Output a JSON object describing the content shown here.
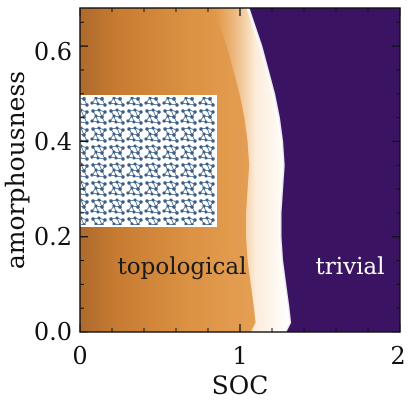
{
  "chart_data": {
    "type": "heatmap",
    "xlabel": "SOC",
    "ylabel": "amorphousness",
    "xlim": [
      0,
      2
    ],
    "ylim": [
      0,
      0.68
    ],
    "x_ticks": [
      "0",
      "1",
      "2"
    ],
    "y_ticks": [
      "0.0",
      "0.2",
      "0.4",
      "0.6"
    ],
    "x_tick_values": [
      0,
      1,
      2
    ],
    "y_tick_values": [
      0.0,
      0.2,
      0.4,
      0.6
    ],
    "regions": [
      {
        "label": "topological",
        "color": "#c8731a"
      },
      {
        "label": "trivial",
        "color": "#3a1463"
      }
    ],
    "phase_boundary": [
      {
        "x": 1.28,
        "y": 0.0
      },
      {
        "x": 1.31,
        "y": 0.02
      },
      {
        "x": 1.3,
        "y": 0.05
      },
      {
        "x": 1.28,
        "y": 0.1
      },
      {
        "x": 1.26,
        "y": 0.15
      },
      {
        "x": 1.25,
        "y": 0.2
      },
      {
        "x": 1.25,
        "y": 0.25
      },
      {
        "x": 1.26,
        "y": 0.3
      },
      {
        "x": 1.27,
        "y": 0.35
      },
      {
        "x": 1.26,
        "y": 0.4
      },
      {
        "x": 1.24,
        "y": 0.45
      },
      {
        "x": 1.21,
        "y": 0.5
      },
      {
        "x": 1.17,
        "y": 0.55
      },
      {
        "x": 1.13,
        "y": 0.6
      },
      {
        "x": 1.08,
        "y": 0.65
      },
      {
        "x": 1.05,
        "y": 0.68
      }
    ],
    "inset": "amorphous lattice structure",
    "colors": {
      "topological_light": "#f0ad62",
      "topological_dark": "#a85a10",
      "boundary": "#ffffff",
      "trivial": "#3a1463",
      "inset_node": "#3a5f87"
    }
  }
}
